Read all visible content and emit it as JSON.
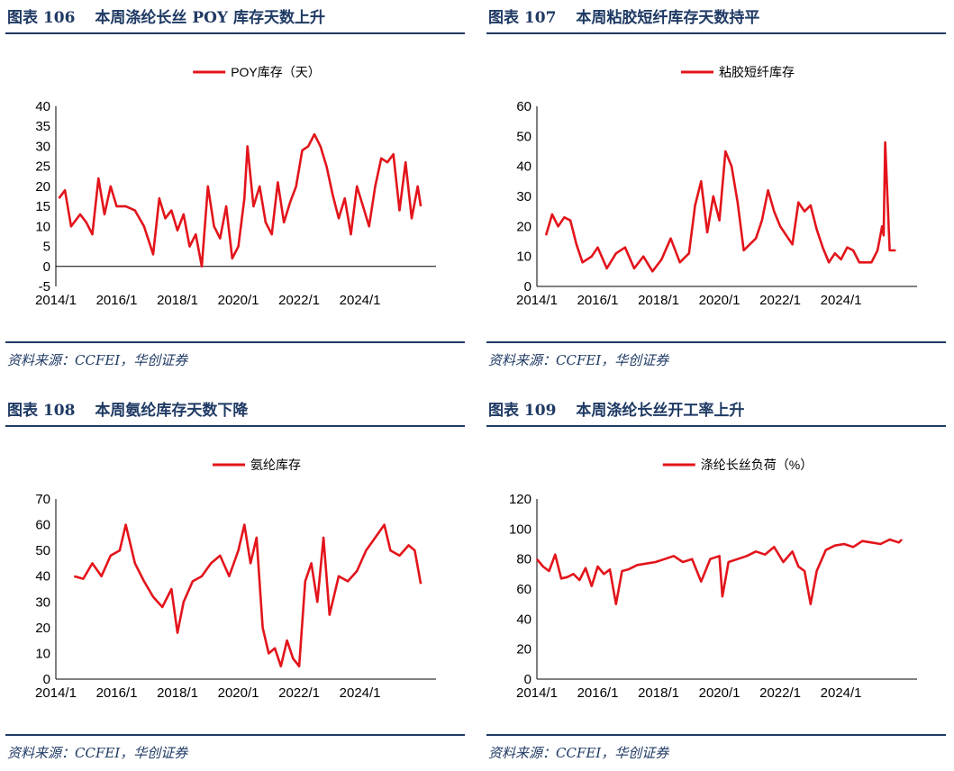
{
  "source_text": "资料来源：CCFEI，华创证券",
  "panels": [
    {
      "figure_label": "图表",
      "figure_number": "106",
      "title": "本周涤纶长丝 POY 库存天数上升",
      "chart_data": {
        "type": "line",
        "legend": "POY库存（天）",
        "color": "#e3141b",
        "ylim": [
          -5,
          40
        ],
        "yticks": [
          "-5",
          "0",
          "5",
          "10",
          "15",
          "20",
          "25",
          "30",
          "35",
          "40"
        ],
        "xlim": [
          2014.0,
          2026.5
        ],
        "xticks": [
          "2014/1",
          "2016/1",
          "2018/1",
          "2020/1",
          "2022/1",
          "2024/1"
        ],
        "x": [
          2014.1,
          2014.3,
          2014.5,
          2014.8,
          2015.0,
          2015.2,
          2015.4,
          2015.6,
          2015.8,
          2016.0,
          2016.3,
          2016.6,
          2016.9,
          2017.2,
          2017.4,
          2017.6,
          2017.8,
          2018.0,
          2018.2,
          2018.4,
          2018.6,
          2018.8,
          2019.0,
          2019.2,
          2019.4,
          2019.6,
          2019.8,
          2020.0,
          2020.2,
          2020.3,
          2020.5,
          2020.7,
          2020.9,
          2021.1,
          2021.3,
          2021.5,
          2021.7,
          2021.9,
          2022.1,
          2022.3,
          2022.5,
          2022.7,
          2022.9,
          2023.1,
          2023.3,
          2023.5,
          2023.7,
          2023.9,
          2024.1,
          2024.3,
          2024.5,
          2024.7,
          2024.9,
          2025.1,
          2025.3,
          2025.5,
          2025.7,
          2025.9,
          2026.0
        ],
        "values": [
          17,
          19,
          10,
          13,
          11,
          8,
          22,
          13,
          20,
          15,
          15,
          14,
          10,
          3,
          17,
          12,
          14,
          9,
          13,
          5,
          8,
          0,
          20,
          10,
          7,
          15,
          2,
          5,
          17,
          30,
          15,
          20,
          11,
          8,
          21,
          11,
          16,
          20,
          29,
          30,
          33,
          30,
          25,
          18,
          12,
          17,
          8,
          20,
          15,
          10,
          20,
          27,
          26,
          28,
          14,
          26,
          12,
          20,
          15
        ]
      }
    },
    {
      "figure_label": "图表",
      "figure_number": "107",
      "title": "本周粘胶短纤库存天数持平",
      "chart_data": {
        "type": "line",
        "legend": "粘胶短纤库存",
        "color": "#e3141b",
        "ylim": [
          0,
          60
        ],
        "yticks": [
          "0",
          "10",
          "20",
          "30",
          "40",
          "50",
          "60"
        ],
        "xlim": [
          2014.0,
          2026.5
        ],
        "xticks": [
          "2014/1",
          "2016/1",
          "2018/1",
          "2020/1",
          "2022/1",
          "2024/1"
        ],
        "x": [
          2014.3,
          2014.5,
          2014.7,
          2014.9,
          2015.1,
          2015.3,
          2015.5,
          2015.8,
          2016.0,
          2016.3,
          2016.6,
          2016.9,
          2017.2,
          2017.5,
          2017.8,
          2018.1,
          2018.4,
          2018.7,
          2019.0,
          2019.2,
          2019.4,
          2019.6,
          2019.8,
          2020.0,
          2020.2,
          2020.4,
          2020.6,
          2020.8,
          2021.0,
          2021.2,
          2021.4,
          2021.6,
          2021.8,
          2022.0,
          2022.2,
          2022.4,
          2022.6,
          2022.8,
          2023.0,
          2023.2,
          2023.4,
          2023.6,
          2023.8,
          2024.0,
          2024.2,
          2024.4,
          2024.6,
          2024.8,
          2025.0,
          2025.2,
          2025.35,
          2025.4,
          2025.45,
          2025.6,
          2025.8
        ],
        "values": [
          17,
          24,
          20,
          23,
          22,
          14,
          8,
          10,
          13,
          6,
          11,
          13,
          6,
          10,
          5,
          9,
          16,
          8,
          11,
          27,
          35,
          18,
          30,
          22,
          45,
          40,
          28,
          12,
          14,
          16,
          22,
          32,
          25,
          20,
          17,
          14,
          28,
          25,
          27,
          19,
          13,
          8,
          11,
          9,
          13,
          12,
          8,
          8,
          8,
          12,
          20,
          17,
          48,
          12,
          12
        ]
      }
    },
    {
      "figure_label": "图表",
      "figure_number": "108",
      "title": "本周氨纶库存天数下降",
      "chart_data": {
        "type": "line",
        "legend": "氨纶库存",
        "color": "#e3141b",
        "ylim": [
          0,
          70
        ],
        "yticks": [
          "0",
          "10",
          "20",
          "30",
          "40",
          "50",
          "60",
          "70"
        ],
        "xlim": [
          2014.0,
          2026.5
        ],
        "xticks": [
          "2014/1",
          "2016/1",
          "2018/1",
          "2020/1",
          "2022/1",
          "2024/1"
        ],
        "x": [
          2014.6,
          2014.9,
          2015.2,
          2015.5,
          2015.8,
          2016.1,
          2016.3,
          2016.6,
          2016.9,
          2017.2,
          2017.5,
          2017.8,
          2018.0,
          2018.2,
          2018.5,
          2018.8,
          2019.1,
          2019.4,
          2019.7,
          2020.0,
          2020.2,
          2020.4,
          2020.6,
          2020.8,
          2021.0,
          2021.2,
          2021.4,
          2021.6,
          2021.8,
          2022.0,
          2022.2,
          2022.4,
          2022.6,
          2022.8,
          2023.0,
          2023.3,
          2023.6,
          2023.9,
          2024.2,
          2024.5,
          2024.8,
          2025.0,
          2025.3,
          2025.6,
          2025.8,
          2026.0
        ],
        "values": [
          40,
          39,
          45,
          40,
          48,
          50,
          60,
          45,
          38,
          32,
          28,
          35,
          18,
          30,
          38,
          40,
          45,
          48,
          40,
          50,
          60,
          45,
          55,
          20,
          10,
          12,
          5,
          15,
          8,
          5,
          38,
          45,
          30,
          55,
          25,
          40,
          38,
          42,
          50,
          55,
          60,
          50,
          48,
          52,
          50,
          37
        ]
      }
    },
    {
      "figure_label": "图表",
      "figure_number": "109",
      "title": "本周涤纶长丝开工率上升",
      "chart_data": {
        "type": "line",
        "legend": "涤纶长丝负荷（%）",
        "color": "#e3141b",
        "ylim": [
          0,
          120
        ],
        "yticks": [
          "0",
          "20",
          "40",
          "60",
          "80",
          "100",
          "120"
        ],
        "xlim": [
          2014.0,
          2026.5
        ],
        "xticks": [
          "2014/1",
          "2016/1",
          "2018/1",
          "2020/1",
          "2022/1",
          "2024/1"
        ],
        "x": [
          2014.0,
          2014.2,
          2014.4,
          2014.6,
          2014.8,
          2015.0,
          2015.2,
          2015.4,
          2015.6,
          2015.8,
          2016.0,
          2016.2,
          2016.4,
          2016.6,
          2016.8,
          2017.0,
          2017.3,
          2017.6,
          2017.9,
          2018.2,
          2018.5,
          2018.8,
          2019.1,
          2019.4,
          2019.7,
          2020.0,
          2020.1,
          2020.3,
          2020.6,
          2020.9,
          2021.2,
          2021.5,
          2021.8,
          2022.1,
          2022.4,
          2022.6,
          2022.8,
          2023.0,
          2023.2,
          2023.5,
          2023.8,
          2024.1,
          2024.4,
          2024.7,
          2025.0,
          2025.3,
          2025.6,
          2025.9,
          2026.0
        ],
        "values": [
          80,
          75,
          72,
          83,
          67,
          68,
          70,
          66,
          74,
          62,
          75,
          70,
          73,
          50,
          72,
          73,
          76,
          77,
          78,
          80,
          82,
          78,
          80,
          65,
          80,
          82,
          55,
          78,
          80,
          82,
          85,
          83,
          88,
          78,
          85,
          75,
          72,
          50,
          72,
          86,
          89,
          90,
          88,
          92,
          91,
          90,
          93,
          91,
          93
        ]
      }
    }
  ]
}
